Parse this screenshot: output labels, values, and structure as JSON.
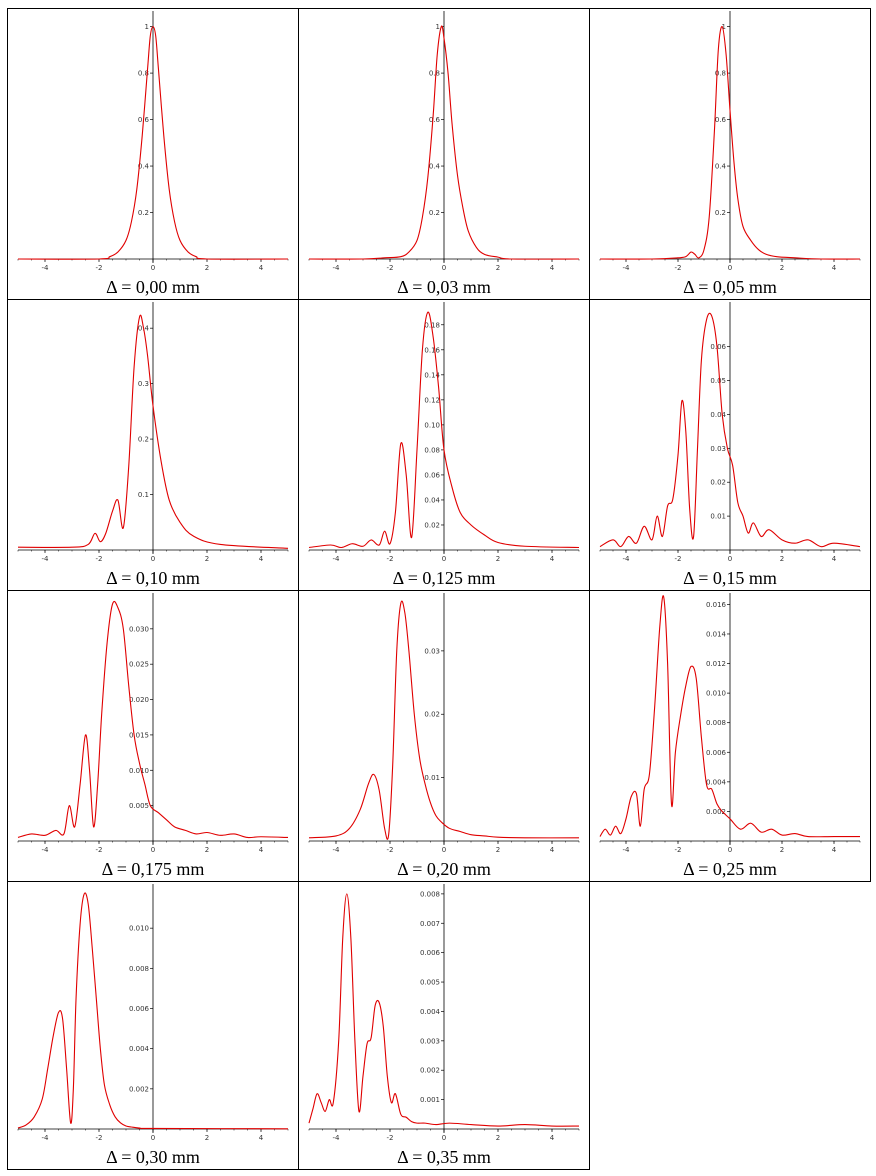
{
  "figure": {
    "line_color": "#e00000",
    "axis_color": "#000000"
  },
  "chart_data": [
    {
      "type": "line",
      "caption": "Δ = 0,00 mm",
      "xlim": [
        -5,
        5
      ],
      "ylim": [
        0,
        1.05
      ],
      "xticks": [
        -4,
        -2,
        0,
        2,
        4
      ],
      "xtick_labels": [
        "-4",
        "-2",
        "0",
        "2",
        "4"
      ],
      "yticks": [
        0.2,
        0.4,
        0.6,
        0.8,
        1
      ],
      "ytick_labels": [
        "0.2",
        "0.4",
        "0.6",
        "0.8",
        "1"
      ],
      "series": [
        {
          "x": [
            -5,
            -2,
            -1.6,
            -1.3,
            -1.0,
            -0.8,
            -0.6,
            -0.4,
            -0.2,
            -0.1,
            0,
            0.1,
            0.2,
            0.4,
            0.6,
            0.8,
            1.0,
            1.3,
            1.6,
            2,
            5
          ],
          "y": [
            0,
            0,
            0.01,
            0.03,
            0.08,
            0.16,
            0.3,
            0.53,
            0.82,
            0.96,
            1.0,
            0.96,
            0.82,
            0.53,
            0.3,
            0.16,
            0.08,
            0.03,
            0.01,
            0,
            0
          ]
        }
      ]
    },
    {
      "type": "line",
      "caption": "Δ = 0,03 mm",
      "xlim": [
        -5,
        5
      ],
      "ylim": [
        0,
        1.05
      ],
      "xticks": [
        -4,
        -2,
        0,
        2,
        4
      ],
      "xtick_labels": [
        "-4",
        "-2",
        "0",
        "2",
        "4"
      ],
      "yticks": [
        0.2,
        0.4,
        0.6,
        0.8,
        1
      ],
      "ytick_labels": [
        "0.2",
        "0.4",
        "0.6",
        "0.8",
        "1"
      ],
      "series": [
        {
          "x": [
            -5,
            -3,
            -2.2,
            -1.6,
            -1.3,
            -1.0,
            -0.8,
            -0.6,
            -0.4,
            -0.25,
            -0.1,
            0,
            0.15,
            0.3,
            0.5,
            0.7,
            0.9,
            1.2,
            1.5,
            2.0,
            2.5,
            5
          ],
          "y": [
            0,
            0,
            0.005,
            0.01,
            0.03,
            0.08,
            0.18,
            0.35,
            0.62,
            0.88,
            1.0,
            0.95,
            0.8,
            0.58,
            0.36,
            0.22,
            0.12,
            0.05,
            0.02,
            0.008,
            0,
            0
          ]
        }
      ]
    },
    {
      "type": "line",
      "caption": "Δ = 0,05 mm",
      "xlim": [
        -5,
        5
      ],
      "ylim": [
        0,
        1.05
      ],
      "xticks": [
        -4,
        -2,
        0,
        2,
        4
      ],
      "xtick_labels": [
        "-4",
        "-2",
        "0",
        "2",
        "4"
      ],
      "yticks": [
        0.2,
        0.4,
        0.6,
        0.8,
        1
      ],
      "ytick_labels": [
        "0.2",
        "0.4",
        "0.6",
        "0.8",
        "1"
      ],
      "series": [
        {
          "x": [
            -5,
            -3,
            -2,
            -1.7,
            -1.5,
            -1.35,
            -1.2,
            -1.0,
            -0.8,
            -0.6,
            -0.45,
            -0.3,
            -0.15,
            0,
            0.15,
            0.3,
            0.5,
            0.8,
            1.1,
            1.4,
            1.8,
            2.5,
            3.5,
            5
          ],
          "y": [
            0,
            0,
            0.005,
            0.01,
            0.03,
            0.02,
            0.005,
            0.04,
            0.18,
            0.55,
            0.9,
            1.0,
            0.88,
            0.64,
            0.42,
            0.26,
            0.14,
            0.08,
            0.04,
            0.02,
            0.01,
            0.005,
            0,
            0
          ]
        }
      ]
    },
    {
      "type": "line",
      "caption": "Δ = 0,10 mm",
      "xlim": [
        -5,
        5
      ],
      "ylim": [
        0,
        0.44
      ],
      "xticks": [
        -4,
        -2,
        0,
        2,
        4
      ],
      "xtick_labels": [
        "-4",
        "-2",
        "0",
        "2",
        "4"
      ],
      "yticks": [
        0.1,
        0.2,
        0.3,
        0.4
      ],
      "ytick_labels": [
        "0.1",
        "0.2",
        "0.3",
        "0.4"
      ],
      "series": [
        {
          "x": [
            -5,
            -3,
            -2.4,
            -2.15,
            -1.95,
            -1.75,
            -1.5,
            -1.3,
            -1.1,
            -0.9,
            -0.7,
            -0.5,
            -0.35,
            -0.2,
            0,
            0.3,
            0.6,
            1.0,
            1.5,
            2.5,
            5
          ],
          "y": [
            0.005,
            0.005,
            0.01,
            0.03,
            0.015,
            0.03,
            0.07,
            0.09,
            0.04,
            0.15,
            0.33,
            0.42,
            0.4,
            0.35,
            0.26,
            0.16,
            0.09,
            0.05,
            0.025,
            0.01,
            0.003
          ]
        }
      ]
    },
    {
      "type": "line",
      "caption": "Δ = 0,125 mm",
      "xlim": [
        -5,
        5
      ],
      "ylim": [
        0,
        0.195
      ],
      "xticks": [
        -4,
        -2,
        0,
        2,
        4
      ],
      "xtick_labels": [
        "-4",
        "-2",
        "0",
        "2",
        "4"
      ],
      "yticks": [
        0.02,
        0.04,
        0.06,
        0.08,
        0.1,
        0.12,
        0.14,
        0.16,
        0.18
      ],
      "ytick_labels": [
        "0.02",
        "0.04",
        "0.06",
        "0.08",
        "0.10",
        "0.12",
        "0.14",
        "0.16",
        "0.18"
      ],
      "series": [
        {
          "x": [
            -5,
            -4.2,
            -3.8,
            -3.4,
            -3.0,
            -2.7,
            -2.4,
            -2.2,
            -2.0,
            -1.8,
            -1.6,
            -1.4,
            -1.2,
            -1.0,
            -0.8,
            -0.6,
            -0.4,
            -0.2,
            0,
            0.3,
            0.6,
            1.0,
            1.5,
            2.0,
            3.0,
            5
          ],
          "y": [
            0.002,
            0.004,
            0.002,
            0.005,
            0.003,
            0.008,
            0.004,
            0.015,
            0.005,
            0.03,
            0.085,
            0.06,
            0.01,
            0.08,
            0.16,
            0.19,
            0.17,
            0.13,
            0.08,
            0.05,
            0.03,
            0.02,
            0.012,
            0.006,
            0.003,
            0.002
          ]
        }
      ]
    },
    {
      "type": "line",
      "caption": "Δ = 0,15 mm",
      "xlim": [
        -5,
        5
      ],
      "ylim": [
        0,
        0.072
      ],
      "xticks": [
        -4,
        -2,
        0,
        2,
        4
      ],
      "xtick_labels": [
        "-4",
        "-2",
        "0",
        "2",
        "4"
      ],
      "yticks": [
        0.01,
        0.02,
        0.03,
        0.04,
        0.05,
        0.06
      ],
      "ytick_labels": [
        "0.01",
        "0.02",
        "0.03",
        "0.04",
        "0.05",
        "0.06"
      ],
      "series": [
        {
          "x": [
            -5,
            -4.5,
            -4.2,
            -3.9,
            -3.6,
            -3.3,
            -3.0,
            -2.8,
            -2.6,
            -2.4,
            -2.2,
            -2.0,
            -1.85,
            -1.7,
            -1.55,
            -1.4,
            -1.25,
            -1.1,
            -0.9,
            -0.7,
            -0.5,
            -0.3,
            -0.1,
            0.1,
            0.3,
            0.5,
            0.7,
            0.9,
            1.2,
            1.5,
            2.0,
            2.5,
            3.0,
            3.5,
            4.0,
            5
          ],
          "y": [
            0.001,
            0.003,
            0.001,
            0.004,
            0.002,
            0.007,
            0.003,
            0.01,
            0.004,
            0.013,
            0.015,
            0.028,
            0.044,
            0.035,
            0.012,
            0.004,
            0.03,
            0.056,
            0.068,
            0.069,
            0.06,
            0.04,
            0.03,
            0.025,
            0.014,
            0.01,
            0.005,
            0.008,
            0.004,
            0.006,
            0.003,
            0.002,
            0.003,
            0.001,
            0.002,
            0.001
          ]
        }
      ]
    },
    {
      "type": "line",
      "caption": "Δ = 0,175 mm",
      "xlim": [
        -5,
        5
      ],
      "ylim": [
        0,
        0.0345
      ],
      "xticks": [
        -4,
        -2,
        0,
        2,
        4
      ],
      "xtick_labels": [
        "-4",
        "-2",
        "0",
        "2",
        "4"
      ],
      "yticks": [
        0.005,
        0.01,
        0.015,
        0.02,
        0.025,
        0.03
      ],
      "ytick_labels": [
        "0.005",
        "0.010",
        "0.015",
        "0.020",
        "0.025",
        "0.030"
      ],
      "series": [
        {
          "x": [
            -5,
            -4.5,
            -4.0,
            -3.6,
            -3.3,
            -3.1,
            -2.9,
            -2.7,
            -2.5,
            -2.35,
            -2.2,
            -2.05,
            -1.9,
            -1.7,
            -1.5,
            -1.3,
            -1.1,
            -0.9,
            -0.7,
            -0.5,
            -0.3,
            -0.1,
            0.2,
            0.5,
            0.8,
            1.2,
            1.6,
            2.0,
            2.5,
            3.0,
            3.5,
            4.0,
            5
          ],
          "y": [
            0.0005,
            0.001,
            0.0008,
            0.0015,
            0.001,
            0.005,
            0.002,
            0.008,
            0.015,
            0.01,
            0.002,
            0.008,
            0.018,
            0.028,
            0.0335,
            0.033,
            0.03,
            0.022,
            0.015,
            0.011,
            0.008,
            0.005,
            0.004,
            0.003,
            0.002,
            0.0015,
            0.001,
            0.0012,
            0.0008,
            0.001,
            0.0005,
            0.0006,
            0.0005
          ]
        }
      ]
    },
    {
      "type": "line",
      "caption": "Δ = 0,20 mm",
      "xlim": [
        -5,
        5
      ],
      "ylim": [
        0,
        0.0385
      ],
      "xticks": [
        -4,
        -2,
        0,
        2,
        4
      ],
      "xtick_labels": [
        "-4",
        "-2",
        "0",
        "2",
        "4"
      ],
      "yticks": [
        0.01,
        0.02,
        0.03
      ],
      "ytick_labels": [
        "0.01",
        "0.02",
        "0.03"
      ],
      "series": [
        {
          "x": [
            -5,
            -4.0,
            -3.5,
            -3.1,
            -2.8,
            -2.6,
            -2.4,
            -2.2,
            -2.05,
            -1.9,
            -1.75,
            -1.6,
            -1.45,
            -1.3,
            -1.1,
            -0.9,
            -0.7,
            -0.5,
            -0.3,
            -0.1,
            0.2,
            0.6,
            1.0,
            1.5,
            2.0,
            3.0,
            5
          ],
          "y": [
            0.0005,
            0.0008,
            0.002,
            0.005,
            0.009,
            0.0105,
            0.008,
            0.002,
            0.001,
            0.012,
            0.03,
            0.0375,
            0.036,
            0.03,
            0.02,
            0.013,
            0.009,
            0.006,
            0.004,
            0.003,
            0.002,
            0.0015,
            0.001,
            0.0008,
            0.0006,
            0.0005,
            0.0005
          ]
        }
      ]
    },
    {
      "type": "line",
      "caption": "Δ = 0,25 mm",
      "xlim": [
        -5,
        5
      ],
      "ylim": [
        0,
        0.0165
      ],
      "xticks": [
        -4,
        -2,
        0,
        2,
        4
      ],
      "xtick_labels": [
        "-4",
        "-2",
        "0",
        "2",
        "4"
      ],
      "yticks": [
        0.002,
        0.004,
        0.006,
        0.008,
        0.01,
        0.012,
        0.014,
        0.016
      ],
      "ytick_labels": [
        "0.002",
        "0.004",
        "0.006",
        "0.008",
        "0.010",
        "0.012",
        "0.014",
        "0.016"
      ],
      "series": [
        {
          "x": [
            -5,
            -4.8,
            -4.6,
            -4.4,
            -4.2,
            -4.0,
            -3.8,
            -3.6,
            -3.45,
            -3.3,
            -3.1,
            -2.9,
            -2.7,
            -2.55,
            -2.4,
            -2.25,
            -2.1,
            -1.9,
            -1.7,
            -1.5,
            -1.3,
            -1.1,
            -0.9,
            -0.7,
            -0.5,
            -0.3,
            0,
            0.4,
            0.8,
            1.2,
            1.6,
            2.0,
            2.5,
            3.0,
            4.0,
            5
          ],
          "y": [
            0.0003,
            0.0008,
            0.0004,
            0.001,
            0.0005,
            0.0015,
            0.003,
            0.0032,
            0.001,
            0.0035,
            0.0045,
            0.009,
            0.0145,
            0.0165,
            0.012,
            0.0025,
            0.006,
            0.0085,
            0.0105,
            0.0118,
            0.011,
            0.007,
            0.0038,
            0.0035,
            0.0025,
            0.002,
            0.0015,
            0.0008,
            0.0012,
            0.0006,
            0.0008,
            0.0004,
            0.0005,
            0.0003,
            0.0003,
            0.0003
          ]
        }
      ]
    },
    {
      "type": "line",
      "caption": "Δ = 0,30 mm",
      "xlim": [
        -5,
        5
      ],
      "ylim": [
        0,
        0.012
      ],
      "xticks": [
        -4,
        -2,
        0,
        2,
        4
      ],
      "xtick_labels": [
        "-4",
        "-2",
        "0",
        "2",
        "4"
      ],
      "yticks": [
        0.002,
        0.004,
        0.006,
        0.008,
        0.01
      ],
      "ytick_labels": [
        "0.002",
        "0.004",
        "0.006",
        "0.008",
        "0.010"
      ],
      "series": [
        {
          "x": [
            -5,
            -4.7,
            -4.4,
            -4.1,
            -3.9,
            -3.7,
            -3.5,
            -3.35,
            -3.2,
            -3.05,
            -2.95,
            -2.85,
            -2.7,
            -2.55,
            -2.4,
            -2.25,
            -2.1,
            -1.95,
            -1.8,
            -1.6,
            -1.4,
            -1.2,
            -1.0,
            -0.8,
            -0.5,
            0,
            5
          ],
          "y": [
            5e-05,
            0.0002,
            0.0006,
            0.0015,
            0.003,
            0.0046,
            0.0058,
            0.0055,
            0.003,
            0.0003,
            0.002,
            0.0065,
            0.0102,
            0.0117,
            0.0112,
            0.009,
            0.0065,
            0.004,
            0.0022,
            0.0012,
            0.0006,
            0.0003,
            0.00015,
            0.0001,
            5e-05,
            3e-05,
            1e-05
          ]
        }
      ]
    },
    {
      "type": "line",
      "caption": "Δ = 0,35 mm",
      "xlim": [
        -5,
        5
      ],
      "ylim": [
        0,
        0.0082
      ],
      "xticks": [
        -4,
        -2,
        0,
        2,
        4
      ],
      "xtick_labels": [
        "-4",
        "-2",
        "0",
        "2",
        "4"
      ],
      "yticks": [
        0.001,
        0.002,
        0.003,
        0.004,
        0.005,
        0.006,
        0.007,
        0.008
      ],
      "ytick_labels": [
        "0.001",
        "0.002",
        "0.003",
        "0.004",
        "0.005",
        "0.006",
        "0.007",
        "0.008"
      ],
      "series": [
        {
          "x": [
            -5,
            -4.85,
            -4.7,
            -4.55,
            -4.4,
            -4.25,
            -4.1,
            -3.9,
            -3.75,
            -3.6,
            -3.45,
            -3.3,
            -3.15,
            -3.0,
            -2.85,
            -2.7,
            -2.55,
            -2.4,
            -2.25,
            -2.1,
            -1.95,
            -1.8,
            -1.6,
            -1.4,
            -1.2,
            -1.0,
            -0.7,
            -0.3,
            0.2,
            1.0,
            2.0,
            3.0,
            4.0,
            5
          ],
          "y": [
            0.0002,
            0.0007,
            0.0012,
            0.0009,
            0.0006,
            0.001,
            0.0009,
            0.003,
            0.0065,
            0.008,
            0.0065,
            0.003,
            0.0006,
            0.0018,
            0.0029,
            0.0031,
            0.0042,
            0.0043,
            0.0035,
            0.0018,
            0.0009,
            0.0012,
            0.0005,
            0.0004,
            0.00025,
            0.0002,
            0.0002,
            0.00015,
            0.0002,
            0.00015,
            0.0001,
            0.00015,
            0.0001,
            0.0001
          ]
        }
      ]
    }
  ]
}
